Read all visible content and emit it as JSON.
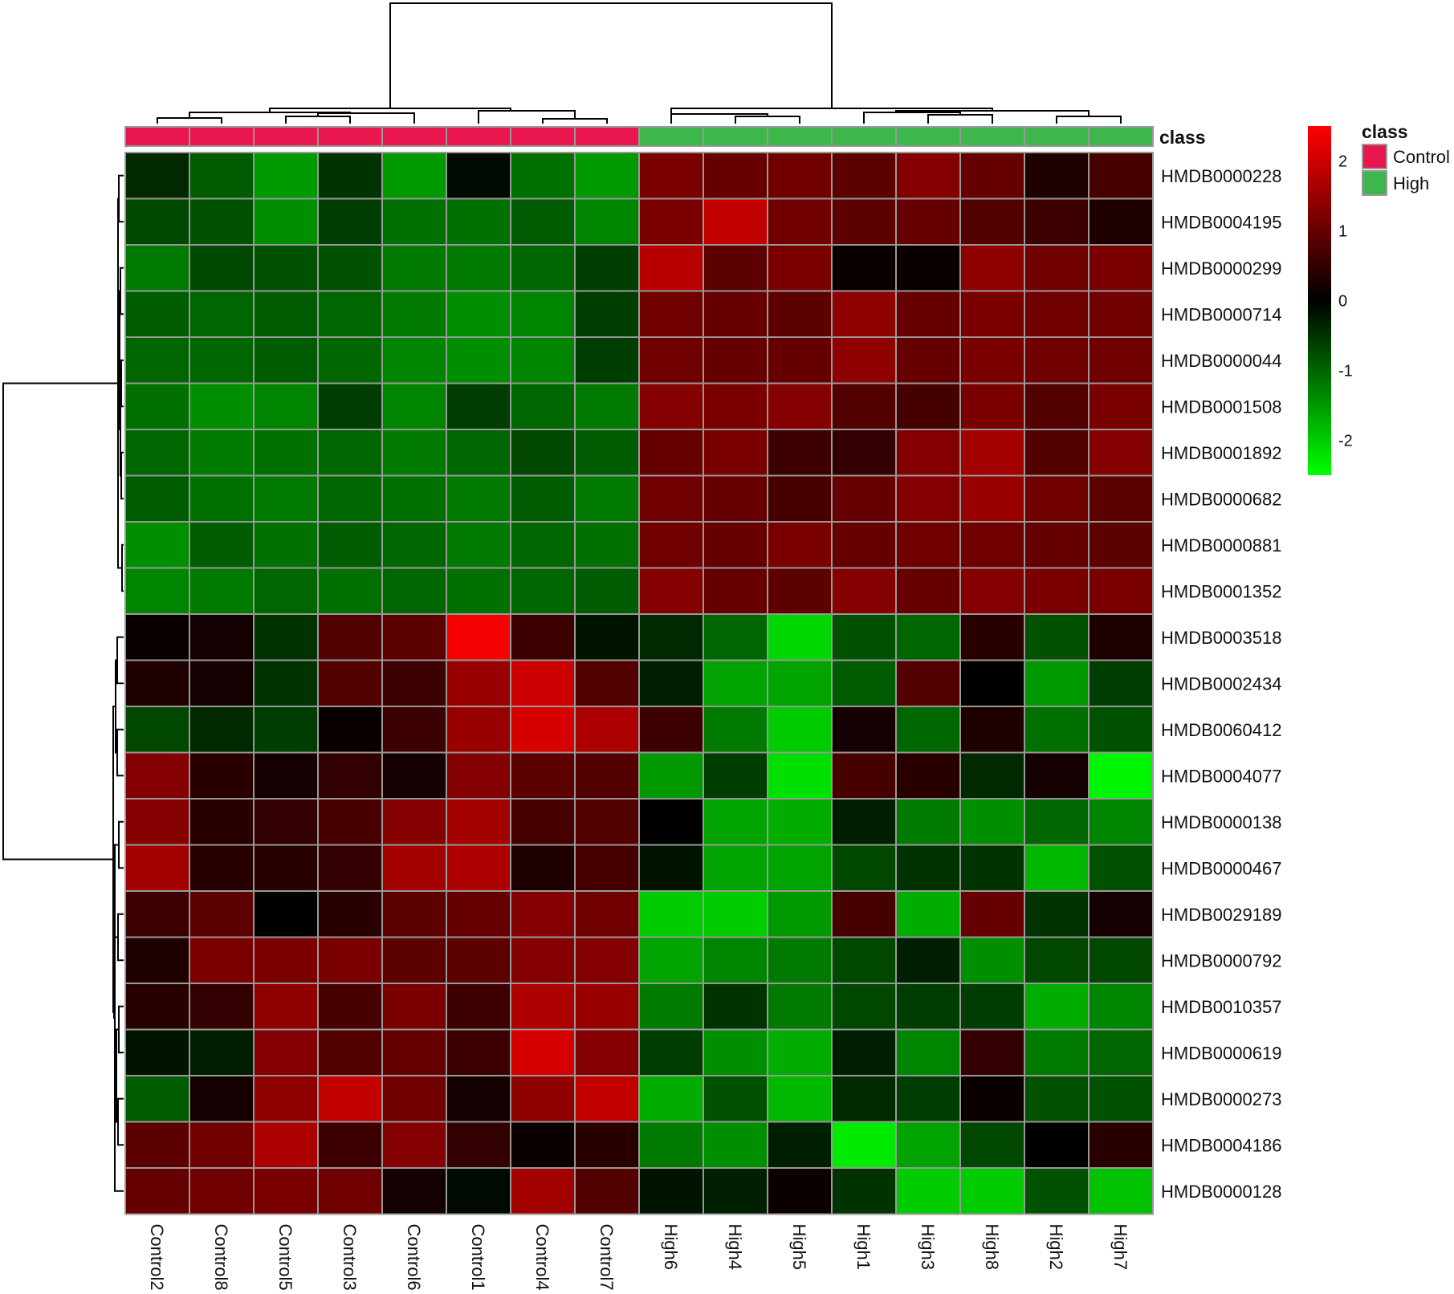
{
  "chart_data": {
    "type": "heatmap",
    "title": "",
    "columns": [
      "Control2",
      "Control8",
      "Control5",
      "Control3",
      "Control6",
      "Control1",
      "Control4",
      "Control7",
      "High6",
      "High4",
      "High5",
      "High1",
      "High3",
      "High8",
      "High2",
      "High7"
    ],
    "column_classes": [
      "Control",
      "Control",
      "Control",
      "Control",
      "Control",
      "Control",
      "Control",
      "Control",
      "High",
      "High",
      "High",
      "High",
      "High",
      "High",
      "High",
      "High"
    ],
    "rows": [
      "HMDB0000228",
      "HMDB0004195",
      "HMDB0000299",
      "HMDB0000714",
      "HMDB0000044",
      "HMDB0001508",
      "HMDB0001892",
      "HMDB0000682",
      "HMDB0000881",
      "HMDB0001352",
      "HMDB0003518",
      "HMDB0002434",
      "HMDB0060412",
      "HMDB0004077",
      "HMDB0000138",
      "HMDB0000467",
      "HMDB0029189",
      "HMDB0000792",
      "HMDB0010357",
      "HMDB0000619",
      "HMDB0000273",
      "HMDB0004186",
      "HMDB0000128"
    ],
    "values": [
      [
        -0.4,
        -0.9,
        -1.5,
        -0.5,
        -1.5,
        -0.1,
        -1.1,
        -1.5,
        1.2,
        1.0,
        1.1,
        0.9,
        1.3,
        1.0,
        0.3,
        0.7
      ],
      [
        -0.7,
        -0.8,
        -1.4,
        -0.6,
        -1.1,
        -1.1,
        -0.9,
        -1.3,
        1.2,
        1.9,
        1.1,
        0.9,
        1.0,
        0.8,
        0.6,
        0.3
      ],
      [
        -1.2,
        -0.7,
        -0.8,
        -0.8,
        -1.2,
        -1.2,
        -1.0,
        -0.6,
        1.8,
        0.9,
        1.2,
        0.1,
        0.1,
        1.4,
        1.1,
        1.2
      ],
      [
        -0.9,
        -1.0,
        -0.9,
        -1.0,
        -1.2,
        -1.4,
        -1.3,
        -0.6,
        1.1,
        1.0,
        0.9,
        1.4,
        1.0,
        1.2,
        1.1,
        1.1
      ],
      [
        -1.0,
        -1.0,
        -0.9,
        -1.0,
        -1.3,
        -1.4,
        -1.3,
        -0.6,
        1.1,
        1.0,
        1.0,
        1.4,
        1.0,
        1.2,
        1.1,
        1.1
      ],
      [
        -1.1,
        -1.4,
        -1.3,
        -0.6,
        -1.3,
        -0.6,
        -1.0,
        -1.2,
        1.3,
        1.2,
        1.3,
        0.8,
        0.7,
        1.2,
        0.8,
        1.2
      ],
      [
        -1.0,
        -1.2,
        -1.1,
        -1.0,
        -1.2,
        -1.0,
        -0.7,
        -0.9,
        1.0,
        1.2,
        0.6,
        0.5,
        1.3,
        1.6,
        0.8,
        1.3
      ],
      [
        -0.9,
        -1.1,
        -1.2,
        -1.0,
        -1.1,
        -1.2,
        -0.9,
        -1.2,
        1.1,
        1.0,
        0.7,
        1.0,
        1.3,
        1.5,
        1.1,
        0.9
      ],
      [
        -1.4,
        -0.9,
        -1.1,
        -0.9,
        -1.0,
        -1.2,
        -1.0,
        -1.1,
        1.1,
        1.0,
        1.2,
        1.0,
        1.1,
        1.1,
        1.0,
        0.9
      ],
      [
        -1.3,
        -1.2,
        -1.0,
        -1.1,
        -1.0,
        -1.1,
        -1.0,
        -0.9,
        1.3,
        1.0,
        0.9,
        1.3,
        1.0,
        1.3,
        1.2,
        1.2
      ],
      [
        0.1,
        0.2,
        -0.5,
        0.8,
        0.9,
        2.4,
        0.6,
        -0.2,
        -0.4,
        -1.0,
        -2.1,
        -0.8,
        -1.0,
        0.4,
        -0.8,
        0.3
      ],
      [
        0.3,
        0.2,
        -0.5,
        0.8,
        0.6,
        1.5,
        2.0,
        0.8,
        -0.3,
        -1.6,
        -1.6,
        -0.9,
        0.8,
        0.0,
        -1.5,
        -0.6
      ],
      [
        -0.7,
        -0.4,
        -0.6,
        0.1,
        0.6,
        1.5,
        2.1,
        1.7,
        0.6,
        -1.2,
        -2.0,
        0.2,
        -1.0,
        0.3,
        -1.1,
        -0.8
      ],
      [
        1.3,
        0.4,
        0.2,
        0.5,
        0.2,
        1.3,
        0.9,
        0.8,
        -1.5,
        -0.6,
        -2.2,
        0.7,
        0.4,
        -0.4,
        0.2,
        -2.4
      ],
      [
        1.3,
        0.4,
        0.5,
        0.7,
        1.3,
        1.6,
        0.7,
        0.8,
        0.0,
        -1.6,
        -1.7,
        -0.3,
        -1.2,
        -1.4,
        -1.0,
        -1.3
      ],
      [
        1.6,
        0.4,
        0.4,
        0.5,
        1.6,
        1.7,
        0.3,
        0.7,
        -0.2,
        -1.6,
        -1.6,
        -0.7,
        -0.5,
        -0.5,
        -1.8,
        -0.8
      ],
      [
        0.6,
        0.9,
        0.0,
        0.4,
        0.9,
        1.0,
        1.3,
        1.1,
        -2.0,
        -2.0,
        -1.5,
        0.7,
        -1.7,
        1.0,
        -0.5,
        0.2
      ],
      [
        0.3,
        1.2,
        1.2,
        1.2,
        0.9,
        0.9,
        1.3,
        1.3,
        -1.6,
        -1.3,
        -1.2,
        -0.7,
        -0.3,
        -1.4,
        -0.7,
        -0.7
      ],
      [
        0.4,
        0.5,
        1.4,
        0.7,
        1.2,
        0.6,
        1.7,
        1.5,
        -1.2,
        -0.5,
        -1.2,
        -0.7,
        -0.6,
        -0.6,
        -1.7,
        -1.3
      ],
      [
        -0.2,
        -0.3,
        1.3,
        0.8,
        1.0,
        0.6,
        2.1,
        1.3,
        -0.6,
        -1.4,
        -1.7,
        -0.3,
        -1.3,
        0.5,
        -1.2,
        -1.0
      ],
      [
        -0.9,
        0.2,
        1.4,
        1.9,
        1.1,
        0.2,
        1.4,
        1.9,
        -1.7,
        -0.8,
        -1.8,
        -0.4,
        -0.6,
        0.1,
        -0.8,
        -0.8
      ],
      [
        0.9,
        1.1,
        1.7,
        0.6,
        1.3,
        0.5,
        0.1,
        0.4,
        -1.2,
        -1.4,
        -0.3,
        -2.3,
        -1.6,
        -0.7,
        0.0,
        0.4
      ],
      [
        1.0,
        1.1,
        1.2,
        1.1,
        0.2,
        -0.1,
        1.6,
        0.8,
        -0.2,
        -0.3,
        0.1,
        -0.5,
        -2.0,
        -2.0,
        -0.8,
        -1.9
      ]
    ],
    "legend": {
      "title": "class",
      "entries": [
        "Control",
        "High"
      ]
    },
    "class_bar_label": "class",
    "colorbar": {
      "ticks": [
        2,
        1,
        0,
        -1,
        -2
      ],
      "labels": [
        "2",
        "1",
        "0",
        "-1",
        "-2"
      ],
      "range": [
        -2.5,
        2.5
      ],
      "low_color": "#00ff00",
      "mid_color": "#000000",
      "high_color": "#ff0000"
    },
    "class_colors": {
      "Control": "#e8174e",
      "High": "#3db64b"
    },
    "grid_color": "#999999",
    "dendrograms": [
      "top",
      "left"
    ]
  }
}
